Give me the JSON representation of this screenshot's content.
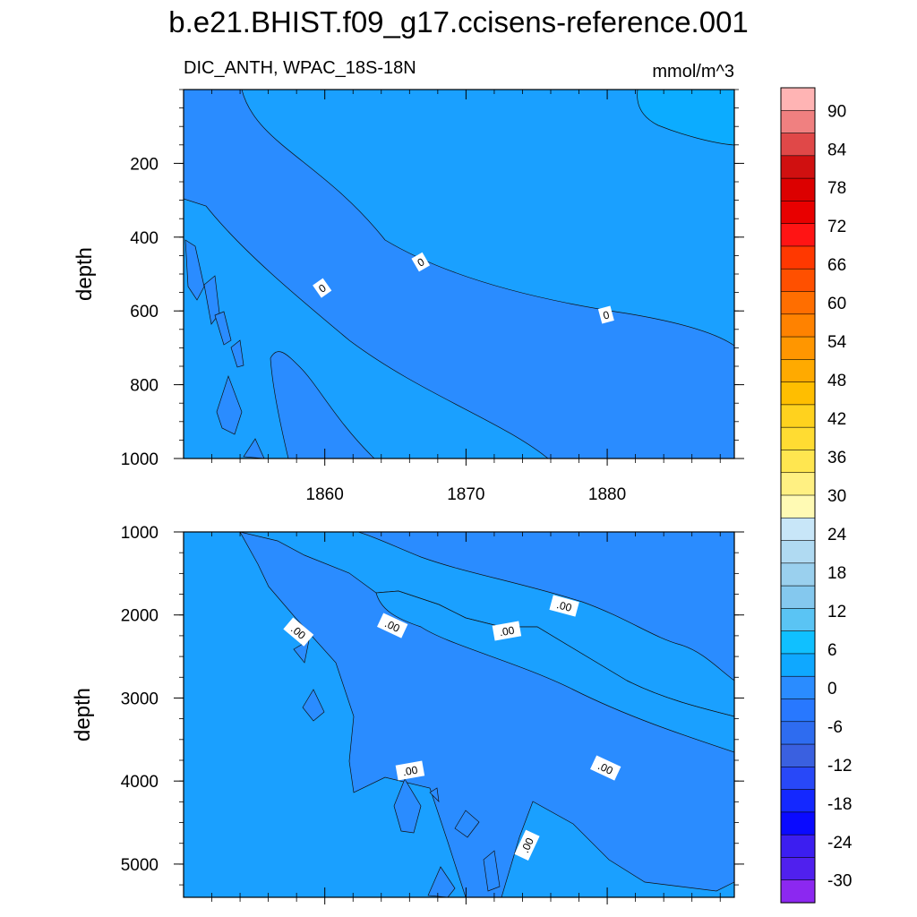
{
  "figure": {
    "title": "b.e21.BHIST.f09_g17.ccisens-reference.001",
    "left_string": "DIC_ANTH, WPAC_18S-18N",
    "right_string": "mmol/m^3"
  },
  "chart_data": [
    {
      "type": "heatmap",
      "panel": "top",
      "title": "DIC_ANTH, WPAC_18S-18N",
      "units": "mmol/m^3",
      "xlabel": "",
      "ylabel": "depth",
      "x_range": [
        1850,
        1889
      ],
      "y_range": [
        0,
        1000
      ],
      "y_inverted": true,
      "x_ticks": [
        1860,
        1870,
        1880
      ],
      "x_tick_labels": [
        "1860",
        "1870",
        "1880"
      ],
      "y_ticks": [
        200,
        400,
        600,
        800,
        1000
      ],
      "y_tick_labels": [
        "200",
        "400",
        "600",
        "800",
        "1000"
      ],
      "contour_labels": [
        "0",
        "0",
        "0"
      ],
      "fill_colors": [
        "#2a8cff",
        "#1aa0ff",
        "#0cacff"
      ],
      "grid": false
    },
    {
      "type": "heatmap",
      "panel": "bottom",
      "ylabel": "depth",
      "x_range": [
        1850,
        1889
      ],
      "y_range": [
        1000,
        5400
      ],
      "y_inverted": true,
      "x_ticks": [
        1860,
        1870,
        1880
      ],
      "y_ticks": [
        1000,
        2000,
        3000,
        4000,
        5000
      ],
      "y_tick_labels": [
        "1000",
        "2000",
        "3000",
        "4000",
        "5000"
      ],
      "contour_labels": [
        ".00",
        ".00",
        ".00",
        ".00",
        ".00",
        ".00",
        ".00"
      ],
      "fill_colors": [
        "#2a8cff",
        "#1aa0ff"
      ],
      "grid": false
    }
  ],
  "colorbar": {
    "orientation": "vertical",
    "labels": [
      "90",
      "84",
      "78",
      "72",
      "66",
      "60",
      "54",
      "48",
      "42",
      "36",
      "30",
      "24",
      "18",
      "12",
      "6",
      "0",
      "-6",
      "-12",
      "-18",
      "-24",
      "-30"
    ],
    "colors": [
      "#ffb4b4",
      "#f08080",
      "#e04848",
      "#d01010",
      "#dc0000",
      "#e80000",
      "#ff1414",
      "#ff3800",
      "#ff5000",
      "#ff6e00",
      "#ff8200",
      "#ff9600",
      "#ffaa00",
      "#ffbe00",
      "#ffd21e",
      "#ffdc32",
      "#ffe650",
      "#fff082",
      "#fffab4",
      "#c8e6f8",
      "#b0daf2",
      "#9ad0ee",
      "#84c8ee",
      "#5ac4f4",
      "#10c0ff",
      "#0fa8ff",
      "#2a8cff",
      "#2878ff",
      "#2e6cf0",
      "#3a60e0",
      "#2848f8",
      "#1428ff",
      "#0a0aff",
      "#3c1ef0",
      "#5020ee",
      "#8c28f0"
    ]
  }
}
